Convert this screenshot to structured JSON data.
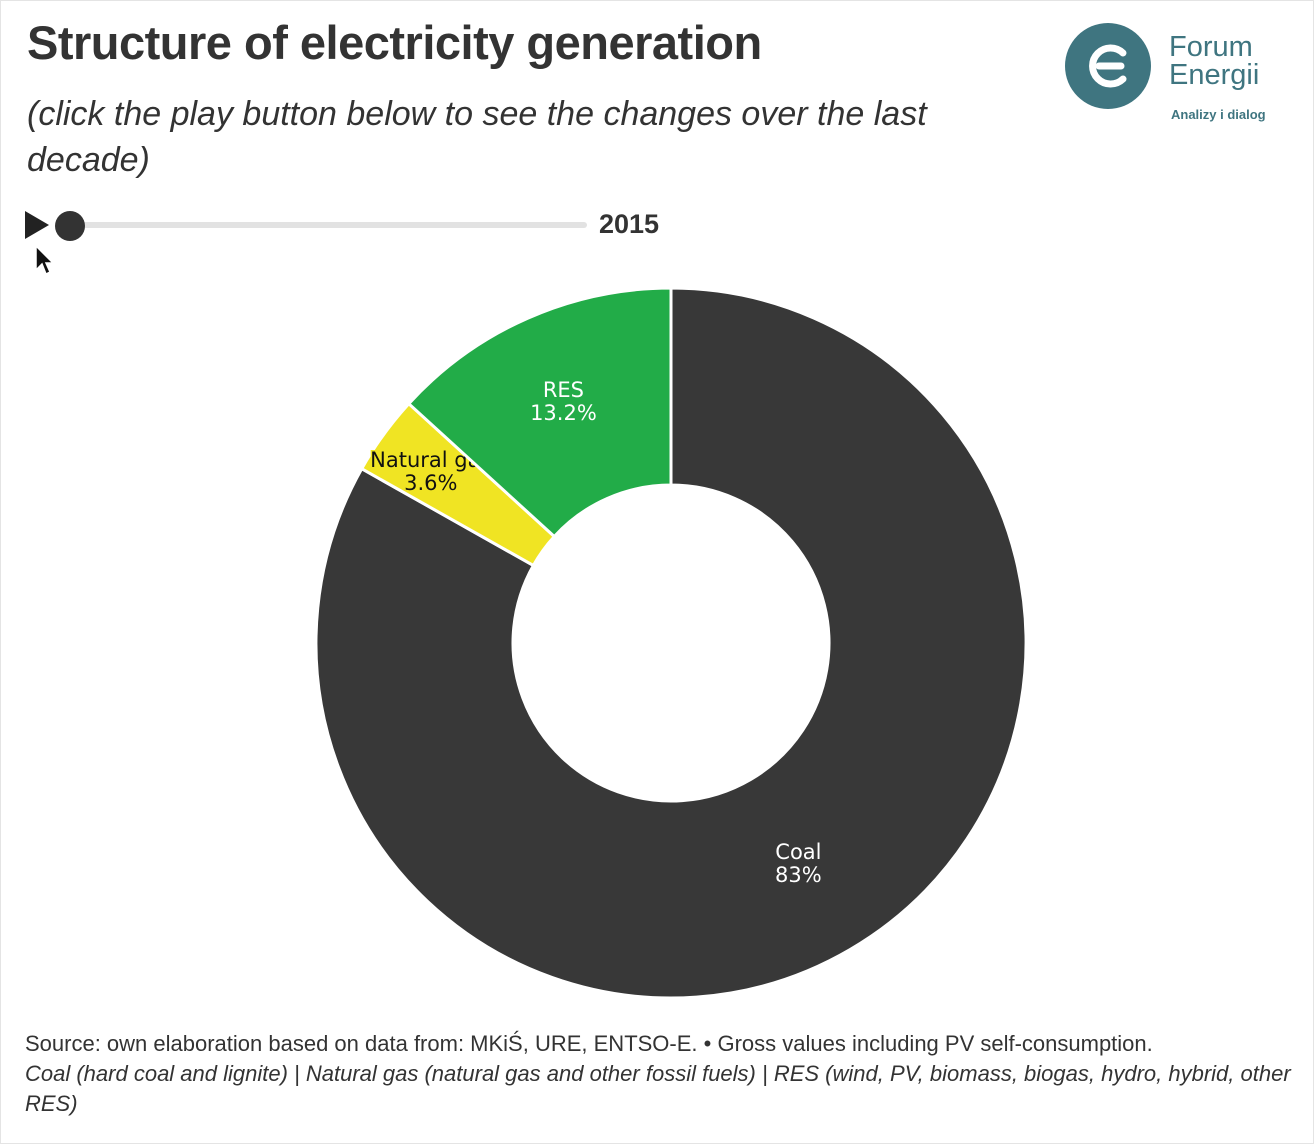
{
  "header": {
    "title": "Structure of electricity generation",
    "subtitle": "(click the play button below to see the changes over the last decade)"
  },
  "logo": {
    "name_line1": "Forum",
    "name_line2": "Energii",
    "tagline": "Analizy i dialog",
    "color": "#3f7580",
    "accent": "#d9362b"
  },
  "player": {
    "year": "2015",
    "play_icon": "play-icon"
  },
  "chart_data": {
    "type": "pie",
    "donut": true,
    "year": "2015",
    "slices": [
      {
        "name": "Coal",
        "value": 83,
        "label": "83%",
        "color": "#383838",
        "text_color": "#ffffff"
      },
      {
        "name": "Natural gas",
        "value": 3.6,
        "label": "3.6%",
        "color": "#f0e423",
        "text_color": "#111111"
      },
      {
        "name": "RES",
        "value": 13.2,
        "label": "13.2%",
        "color": "#22ac48",
        "text_color": "#ffffff"
      }
    ]
  },
  "footer": {
    "source": "Source: own elaboration based on data from: MKiŚ, URE, ENTSO-E. • Gross values including PV self-consumption.",
    "legend": "Coal (hard coal and lignite) | Natural gas (natural gas and other fossil fuels) | RES (wind, PV, biomass, biogas, hydro, hybrid, other RES)"
  }
}
